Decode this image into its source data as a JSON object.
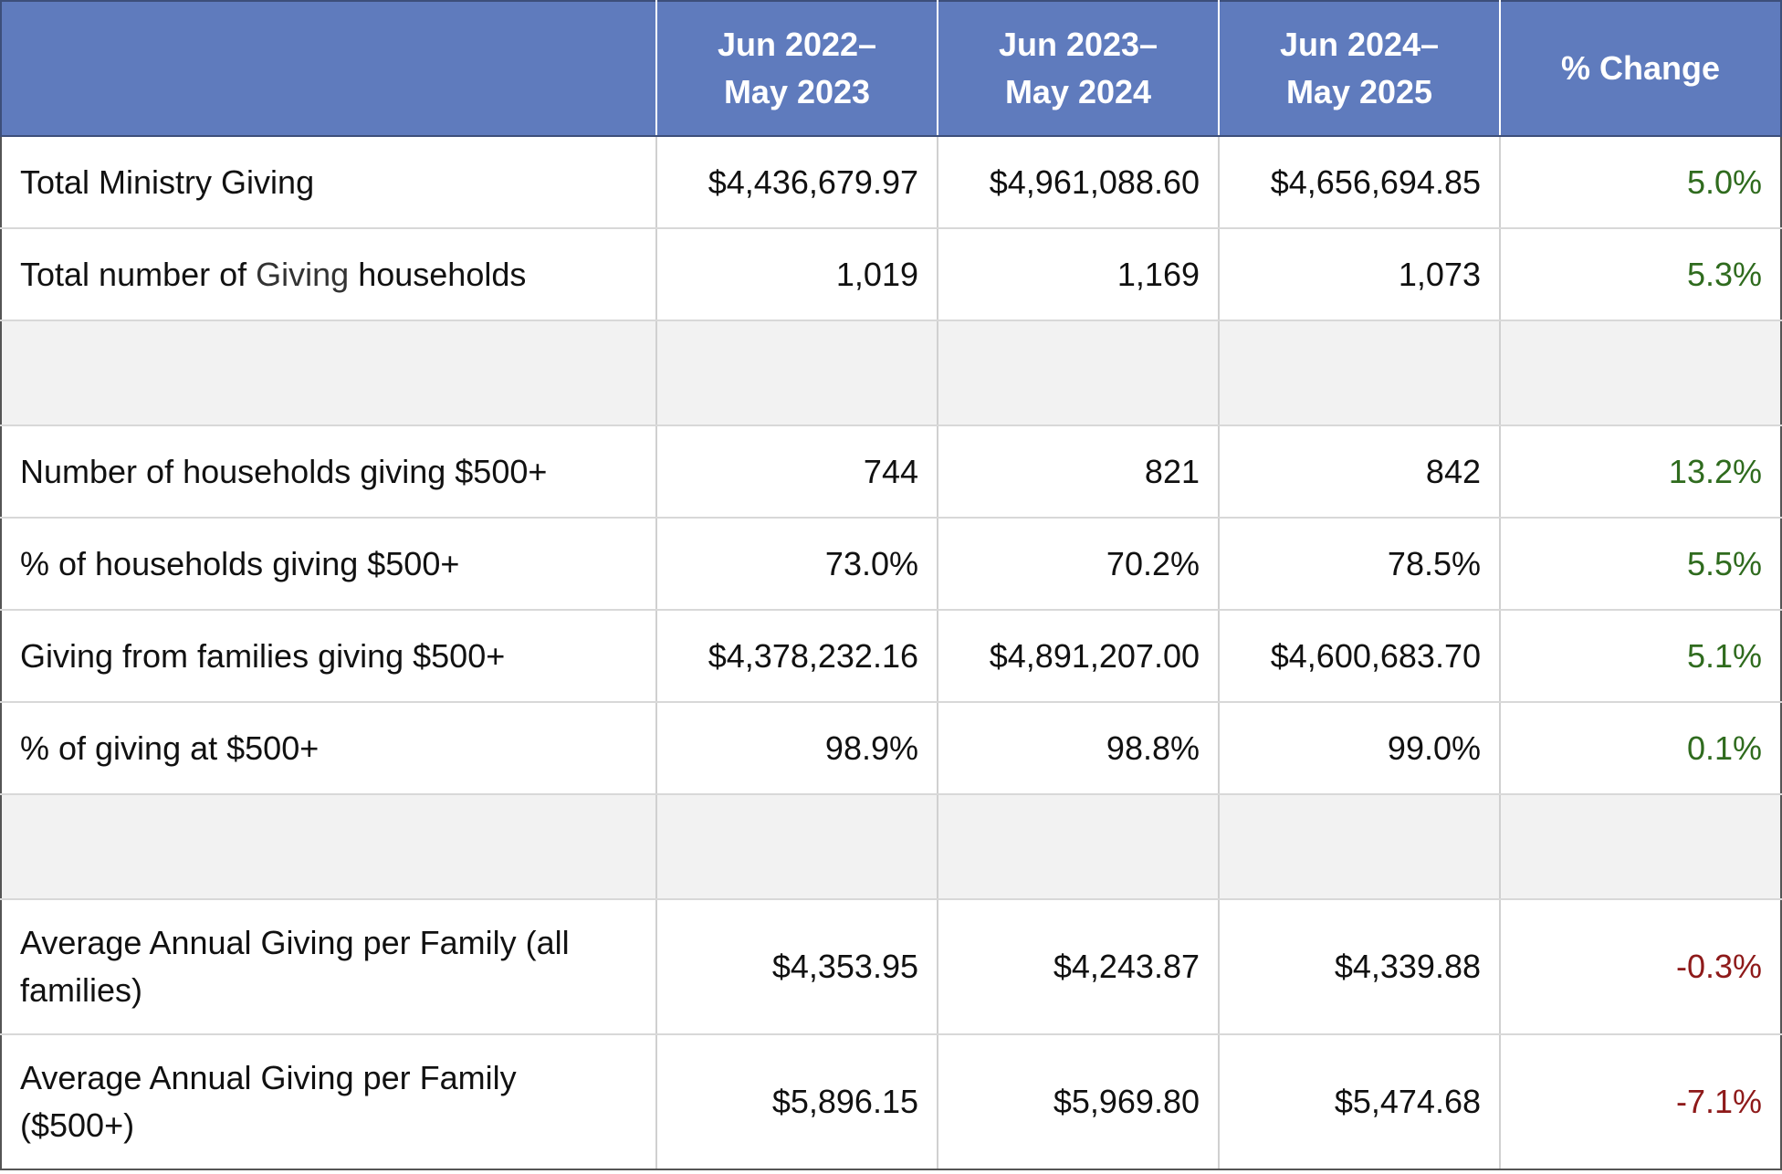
{
  "colors": {
    "header_bg": "#5f7bbd",
    "positive": "#2f6b1e",
    "negative": "#8e1a1a",
    "spacer_bg": "#f2f2f2"
  },
  "header": {
    "col1": [
      "Jun 2022–",
      "May 2023"
    ],
    "col2": [
      "Jun 2023–",
      "May 2024"
    ],
    "col3": [
      "Jun 2024–",
      "May 2025"
    ],
    "col4": "% Change"
  },
  "rows": [
    {
      "label": "Total Ministry Giving",
      "v1": "$4,436,679.97",
      "v2": "$4,961,088.60",
      "v3": "$4,656,694.85",
      "change": "5.0%"
    },
    {
      "label_pre": "Total number of",
      "label_mid": "Giving",
      "label_post": "households",
      "v1": "1,019",
      "v2": "1,169",
      "v3": "1,073",
      "change": "5.3%"
    },
    {
      "label": "Number of households giving $500+",
      "v1": "744",
      "v2": "821",
      "v3": "842",
      "change": "13.2%"
    },
    {
      "label": "% of households giving $500+",
      "v1": "73.0%",
      "v2": "70.2%",
      "v3": "78.5%",
      "change": "5.5%"
    },
    {
      "label": "Giving from families giving $500+",
      "v1": "$4,378,232.16",
      "v2": "$4,891,207.00",
      "v3": "$4,600,683.70",
      "change": "5.1%"
    },
    {
      "label": "% of giving at $500+",
      "v1": "98.9%",
      "v2": "98.8%",
      "v3": "99.0%",
      "change": "0.1%"
    },
    {
      "label": "Average Annual Giving per Family (all families)",
      "v1": "$4,353.95",
      "v2": "$4,243.87",
      "v3": "$4,339.88",
      "change": "-0.3%"
    },
    {
      "label": "Average Annual Giving per Family ($500+)",
      "v1": "$5,896.15",
      "v2": "$5,969.80",
      "v3": "$5,474.68",
      "change": "-7.1%"
    }
  ]
}
